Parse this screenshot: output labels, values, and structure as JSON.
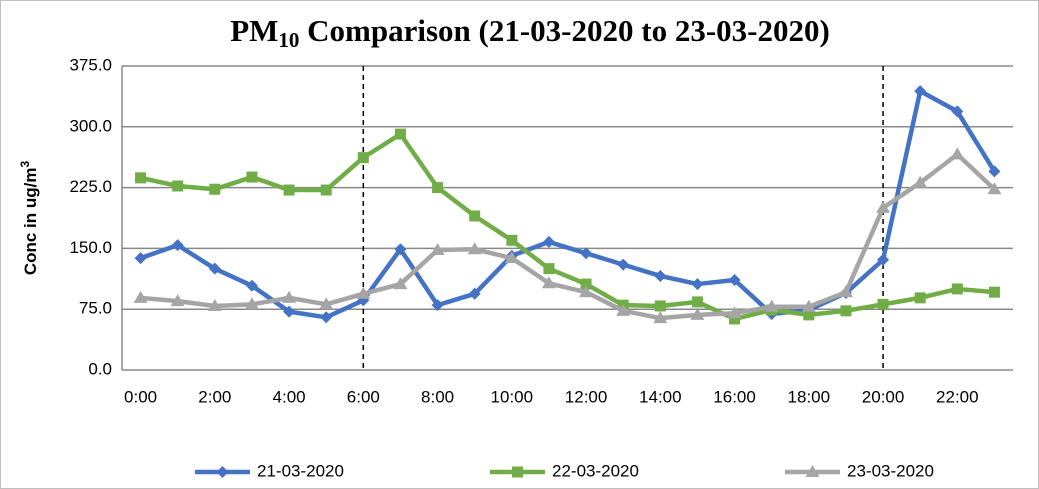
{
  "chart_data": {
    "type": "line",
    "title": [
      "PM",
      "10",
      " Comparison (21-03-2020 to 23-03-2020)"
    ],
    "ylabel": [
      "Conc in ug/m",
      "3"
    ],
    "categories": [
      "0:00",
      null,
      "2:00",
      null,
      "4:00",
      null,
      "6:00",
      null,
      "8:00",
      null,
      "10:00",
      null,
      "12:00",
      null,
      "14:00",
      null,
      "16:00",
      null,
      "18:00",
      null,
      "20:00",
      null,
      "22:00",
      null
    ],
    "reference_lines": [
      6,
      20
    ],
    "ylim": [
      0,
      375
    ],
    "yticks": [
      {
        "value": 0,
        "label": "0.0"
      },
      {
        "value": 75,
        "label": "75.0"
      },
      {
        "value": 150,
        "label": "150.0"
      },
      {
        "value": 225,
        "label": "225.0"
      },
      {
        "value": 300,
        "label": "300.0"
      },
      {
        "value": 375,
        "label": "375.0"
      }
    ],
    "grid": true,
    "legend": "bottom",
    "series": [
      {
        "name": "21-03-2020",
        "color": "#4472c4",
        "marker": "diamond",
        "values": [
          138,
          154,
          125,
          104,
          72,
          65,
          86,
          149,
          80,
          94,
          141,
          158,
          144,
          130,
          116,
          106,
          111,
          69,
          74,
          95,
          136,
          344,
          319,
          245
        ]
      },
      {
        "name": "22-03-2020",
        "color": "#70ad47",
        "marker": "square",
        "values": [
          237,
          227,
          223,
          238,
          222,
          222,
          262,
          291,
          225,
          190,
          160,
          125,
          106,
          80,
          79,
          84,
          63,
          74,
          68,
          73,
          81,
          89,
          100,
          96
        ]
      },
      {
        "name": "23-03-2020",
        "color": "#a5a5a5",
        "marker": "triangle",
        "values": [
          89,
          85,
          79,
          81,
          89,
          81,
          94,
          106,
          148,
          149,
          138,
          107,
          96,
          73,
          64,
          68,
          70,
          78,
          78,
          96,
          200,
          231,
          266,
          223
        ]
      }
    ]
  }
}
